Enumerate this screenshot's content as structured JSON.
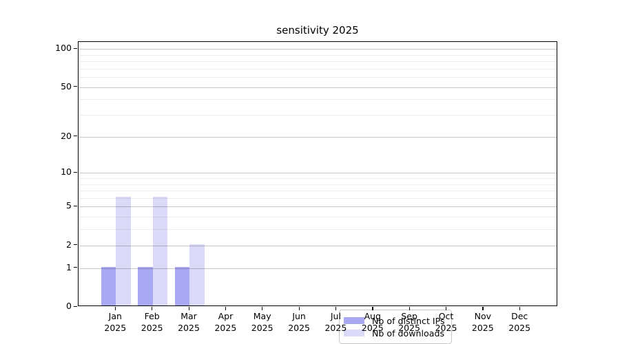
{
  "chart_data": {
    "type": "bar",
    "title": "sensitivity 2025",
    "x_axis": {
      "categories": [
        "Jan",
        "Feb",
        "Mar",
        "Apr",
        "May",
        "Jun",
        "Jul",
        "Aug",
        "Sep",
        "Oct",
        "Nov",
        "Dec"
      ],
      "year_label": "2025"
    },
    "y_axis": {
      "scale": "log1p",
      "tick_labels": [
        0,
        1,
        2,
        5,
        10,
        20,
        50,
        100
      ],
      "minor_gridlines": [
        3,
        4,
        6,
        7,
        8,
        9,
        30,
        40,
        60,
        70,
        80,
        90
      ],
      "ylim": [
        0,
        113
      ],
      "grid": "on"
    },
    "series": [
      {
        "name": "Nb of distinct IPs",
        "color": "#a9a9f3",
        "values": [
          1,
          1,
          1,
          0,
          0,
          0,
          0,
          0,
          0,
          0,
          0,
          0
        ]
      },
      {
        "name": "Nb of downloads",
        "color": "#dadaf8",
        "values": [
          6,
          6,
          2,
          0,
          0,
          0,
          0,
          0,
          0,
          0,
          0,
          0
        ]
      }
    ],
    "legend": {
      "position": "bottom-center"
    },
    "colors": {
      "background": "#ffffff",
      "axis": "#000000",
      "major_grid": "#c7c7c7",
      "minor_grid": "#ededed",
      "legend_border": "#c9c9c9"
    }
  }
}
